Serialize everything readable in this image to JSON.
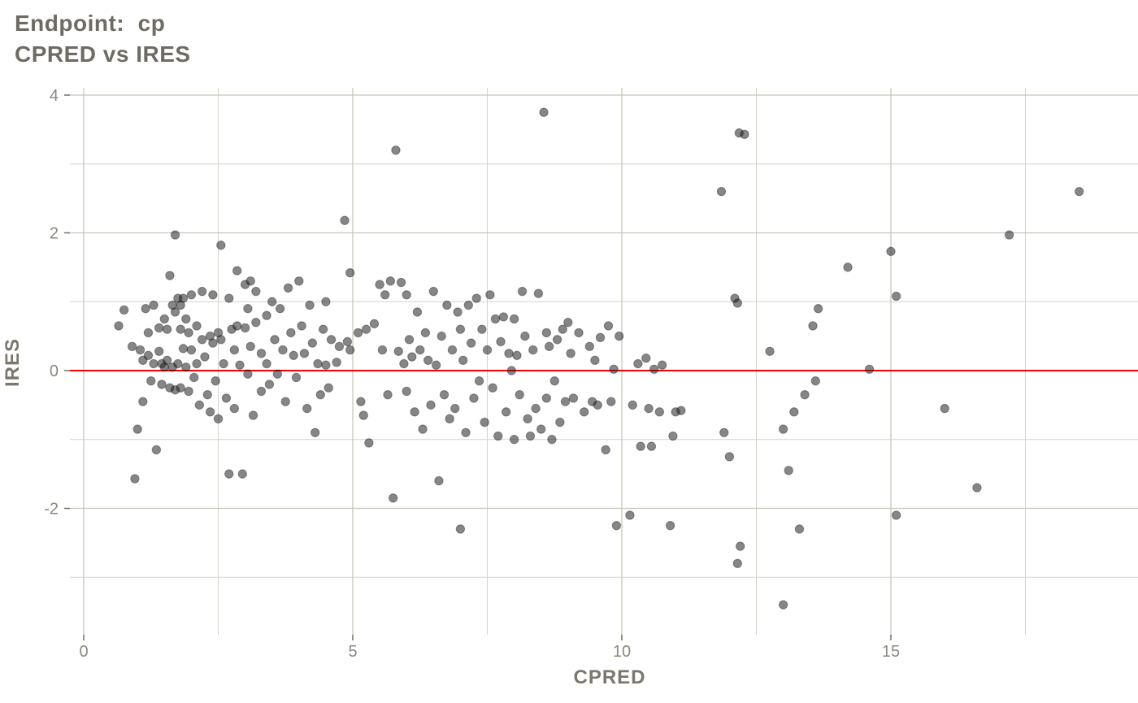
{
  "title": {
    "line1": "Endpoint:  cp",
    "line2": "CPRED vs IRES"
  },
  "colors": {
    "title_text": "#6d6b62",
    "axis_text": "#8a887e",
    "grid_major": "#c9c5bb",
    "grid_minor": "#d5d2c9",
    "tick_mark": "#6f6d66",
    "reference_line": "#ff0000",
    "point_fill": "#232323"
  },
  "chart_data": {
    "type": "scatter",
    "title": "Endpoint: cp",
    "subtitle": "CPRED vs IRES",
    "xlabel": "CPRED",
    "ylabel": "IRES",
    "xlim": [
      -0.26,
      19.6
    ],
    "ylim": [
      -3.85,
      4.1
    ],
    "x_major_ticks": [
      0,
      5,
      10,
      15
    ],
    "x_minor_ticks": [
      2.5,
      7.5,
      12.5,
      17.5
    ],
    "y_major_ticks": [
      -2,
      0,
      2,
      4
    ],
    "y_minor_ticks": [
      -3,
      -1,
      1,
      3
    ],
    "grid": true,
    "legend": "none",
    "reference_line": {
      "y": 0
    },
    "point_style": {
      "radius": 5.2,
      "opacity": 0.55
    },
    "points": [
      [
        0.65,
        0.65
      ],
      [
        0.75,
        0.88
      ],
      [
        0.9,
        0.35
      ],
      [
        0.95,
        -1.57
      ],
      [
        1.0,
        -0.85
      ],
      [
        1.05,
        0.3
      ],
      [
        1.1,
        0.15
      ],
      [
        1.1,
        -0.45
      ],
      [
        1.15,
        0.9
      ],
      [
        1.2,
        0.55
      ],
      [
        1.2,
        0.22
      ],
      [
        1.25,
        -0.15
      ],
      [
        1.3,
        0.95
      ],
      [
        1.3,
        0.1
      ],
      [
        1.35,
        -1.15
      ],
      [
        1.4,
        0.62
      ],
      [
        1.4,
        0.28
      ],
      [
        1.45,
        0.1
      ],
      [
        1.45,
        -0.2
      ],
      [
        1.5,
        0.75
      ],
      [
        1.5,
        0.05
      ],
      [
        1.55,
        0.6
      ],
      [
        1.55,
        0.15
      ],
      [
        1.6,
        1.38
      ],
      [
        1.6,
        -0.25
      ],
      [
        1.65,
        0.95
      ],
      [
        1.65,
        0.05
      ],
      [
        1.7,
        1.97
      ],
      [
        1.7,
        0.85
      ],
      [
        1.7,
        -0.28
      ],
      [
        1.75,
        1.05
      ],
      [
        1.75,
        0.1
      ],
      [
        1.8,
        0.95
      ],
      [
        1.8,
        0.6
      ],
      [
        1.8,
        -0.25
      ],
      [
        1.85,
        1.05
      ],
      [
        1.85,
        0.32
      ],
      [
        1.9,
        0.75
      ],
      [
        1.9,
        0.05
      ],
      [
        1.95,
        0.55
      ],
      [
        1.95,
        -0.3
      ],
      [
        2.0,
        1.1
      ],
      [
        2.0,
        0.3
      ],
      [
        2.05,
        -0.1
      ],
      [
        2.1,
        0.65
      ],
      [
        2.1,
        0.1
      ],
      [
        2.15,
        -0.5
      ],
      [
        2.2,
        1.15
      ],
      [
        2.2,
        0.45
      ],
      [
        2.25,
        0.2
      ],
      [
        2.3,
        -0.35
      ],
      [
        2.35,
        0.5
      ],
      [
        2.35,
        -0.6
      ],
      [
        2.4,
        1.1
      ],
      [
        2.4,
        0.4
      ],
      [
        2.45,
        -0.15
      ],
      [
        2.5,
        0.55
      ],
      [
        2.5,
        -0.7
      ],
      [
        2.55,
        1.82
      ],
      [
        2.55,
        0.45
      ],
      [
        2.6,
        0.1
      ],
      [
        2.65,
        -0.4
      ],
      [
        2.7,
        1.05
      ],
      [
        2.7,
        -1.5
      ],
      [
        2.75,
        0.6
      ],
      [
        2.8,
        0.3
      ],
      [
        2.8,
        -0.55
      ],
      [
        2.85,
        1.45
      ],
      [
        2.85,
        0.65
      ],
      [
        2.9,
        0.08
      ],
      [
        2.95,
        -1.5
      ],
      [
        3.0,
        1.25
      ],
      [
        3.0,
        0.62
      ],
      [
        3.05,
        0.9
      ],
      [
        3.05,
        -0.05
      ],
      [
        3.1,
        1.3
      ],
      [
        3.1,
        0.35
      ],
      [
        3.15,
        -0.65
      ],
      [
        3.2,
        1.15
      ],
      [
        3.2,
        0.7
      ],
      [
        3.3,
        0.25
      ],
      [
        3.3,
        -0.3
      ],
      [
        3.4,
        0.8
      ],
      [
        3.4,
        0.1
      ],
      [
        3.45,
        -0.2
      ],
      [
        3.5,
        1.0
      ],
      [
        3.55,
        0.45
      ],
      [
        3.6,
        -0.05
      ],
      [
        3.65,
        0.9
      ],
      [
        3.7,
        0.3
      ],
      [
        3.75,
        -0.45
      ],
      [
        3.8,
        1.2
      ],
      [
        3.85,
        0.55
      ],
      [
        3.9,
        0.22
      ],
      [
        3.95,
        -0.1
      ],
      [
        4.0,
        1.3
      ],
      [
        4.05,
        0.65
      ],
      [
        4.1,
        0.25
      ],
      [
        4.15,
        -0.55
      ],
      [
        4.2,
        0.95
      ],
      [
        4.25,
        0.4
      ],
      [
        4.3,
        -0.9
      ],
      [
        4.35,
        0.1
      ],
      [
        4.4,
        -0.35
      ],
      [
        4.45,
        0.6
      ],
      [
        4.5,
        1.0
      ],
      [
        4.5,
        0.08
      ],
      [
        4.55,
        -0.25
      ],
      [
        4.6,
        0.45
      ],
      [
        4.7,
        0.12
      ],
      [
        4.75,
        0.35
      ],
      [
        4.85,
        2.18
      ],
      [
        4.9,
        0.42
      ],
      [
        4.95,
        1.42
      ],
      [
        4.95,
        0.3
      ],
      [
        5.1,
        0.55
      ],
      [
        5.15,
        -0.45
      ],
      [
        5.2,
        -0.65
      ],
      [
        5.25,
        0.6
      ],
      [
        5.3,
        -1.05
      ],
      [
        5.4,
        0.68
      ],
      [
        5.5,
        1.25
      ],
      [
        5.55,
        0.3
      ],
      [
        5.6,
        1.1
      ],
      [
        5.65,
        -0.35
      ],
      [
        5.7,
        1.3
      ],
      [
        5.75,
        -1.85
      ],
      [
        5.8,
        3.2
      ],
      [
        5.85,
        0.28
      ],
      [
        5.9,
        1.28
      ],
      [
        5.95,
        0.1
      ],
      [
        6.0,
        1.1
      ],
      [
        6.0,
        -0.3
      ],
      [
        6.05,
        0.45
      ],
      [
        6.1,
        0.2
      ],
      [
        6.15,
        -0.6
      ],
      [
        6.2,
        0.85
      ],
      [
        6.25,
        0.3
      ],
      [
        6.3,
        -0.85
      ],
      [
        6.35,
        0.55
      ],
      [
        6.4,
        0.15
      ],
      [
        6.45,
        -0.5
      ],
      [
        6.5,
        1.15
      ],
      [
        6.55,
        0.08
      ],
      [
        6.6,
        -1.6
      ],
      [
        6.65,
        0.5
      ],
      [
        6.7,
        -0.35
      ],
      [
        6.75,
        0.95
      ],
      [
        6.8,
        -0.7
      ],
      [
        6.85,
        0.3
      ],
      [
        6.9,
        -0.55
      ],
      [
        6.95,
        0.85
      ],
      [
        7.0,
        -2.3
      ],
      [
        7.0,
        0.6
      ],
      [
        7.05,
        0.15
      ],
      [
        7.1,
        -0.9
      ],
      [
        7.15,
        0.95
      ],
      [
        7.2,
        0.4
      ],
      [
        7.25,
        -0.4
      ],
      [
        7.3,
        1.05
      ],
      [
        7.35,
        -0.15
      ],
      [
        7.4,
        0.6
      ],
      [
        7.45,
        -0.75
      ],
      [
        7.5,
        0.3
      ],
      [
        7.55,
        1.1
      ],
      [
        7.6,
        -0.25
      ],
      [
        7.65,
        0.75
      ],
      [
        7.7,
        -0.95
      ],
      [
        7.75,
        0.42
      ],
      [
        7.8,
        0.78
      ],
      [
        7.85,
        -0.6
      ],
      [
        7.9,
        0.25
      ],
      [
        7.95,
        0.0
      ],
      [
        8.0,
        -1.0
      ],
      [
        8.0,
        0.75
      ],
      [
        8.05,
        0.22
      ],
      [
        8.1,
        -0.35
      ],
      [
        8.15,
        1.15
      ],
      [
        8.2,
        0.5
      ],
      [
        8.25,
        -0.7
      ],
      [
        8.3,
        -0.95
      ],
      [
        8.35,
        0.3
      ],
      [
        8.4,
        -0.55
      ],
      [
        8.45,
        1.12
      ],
      [
        8.5,
        -0.85
      ],
      [
        8.55,
        3.75
      ],
      [
        8.6,
        0.55
      ],
      [
        8.6,
        -0.4
      ],
      [
        8.65,
        0.35
      ],
      [
        8.7,
        -1.0
      ],
      [
        8.75,
        -0.15
      ],
      [
        8.8,
        0.45
      ],
      [
        8.85,
        -0.75
      ],
      [
        8.9,
        0.6
      ],
      [
        8.95,
        -0.45
      ],
      [
        9.0,
        0.7
      ],
      [
        9.05,
        0.25
      ],
      [
        9.1,
        -0.4
      ],
      [
        9.2,
        0.55
      ],
      [
        9.3,
        -0.6
      ],
      [
        9.4,
        0.35
      ],
      [
        9.45,
        -0.45
      ],
      [
        9.5,
        0.15
      ],
      [
        9.55,
        -0.5
      ],
      [
        9.6,
        0.48
      ],
      [
        9.7,
        -1.15
      ],
      [
        9.75,
        0.65
      ],
      [
        9.8,
        -0.45
      ],
      [
        9.85,
        0.02
      ],
      [
        9.9,
        -2.25
      ],
      [
        9.95,
        0.5
      ],
      [
        10.15,
        -2.1
      ],
      [
        10.2,
        -0.5
      ],
      [
        10.3,
        0.1
      ],
      [
        10.35,
        -1.1
      ],
      [
        10.45,
        0.18
      ],
      [
        10.5,
        -0.55
      ],
      [
        10.55,
        -1.1
      ],
      [
        10.6,
        0.02
      ],
      [
        10.7,
        -0.6
      ],
      [
        10.75,
        0.08
      ],
      [
        10.9,
        -2.25
      ],
      [
        10.95,
        -0.95
      ],
      [
        11.0,
        -0.6
      ],
      [
        11.1,
        -0.58
      ],
      [
        11.85,
        2.6
      ],
      [
        11.9,
        -0.9
      ],
      [
        12.0,
        -1.25
      ],
      [
        12.1,
        1.05
      ],
      [
        12.15,
        0.98
      ],
      [
        12.18,
        3.45
      ],
      [
        12.28,
        3.43
      ],
      [
        12.15,
        -2.8
      ],
      [
        12.2,
        -2.55
      ],
      [
        12.75,
        0.28
      ],
      [
        13.0,
        -3.4
      ],
      [
        13.0,
        -0.85
      ],
      [
        13.1,
        -1.45
      ],
      [
        13.2,
        -0.6
      ],
      [
        13.3,
        -2.3
      ],
      [
        13.4,
        -0.35
      ],
      [
        13.55,
        0.65
      ],
      [
        13.6,
        -0.15
      ],
      [
        13.65,
        0.9
      ],
      [
        14.2,
        1.5
      ],
      [
        14.6,
        0.02
      ],
      [
        15.0,
        1.73
      ],
      [
        15.1,
        1.08
      ],
      [
        15.1,
        -2.1
      ],
      [
        16.0,
        -0.55
      ],
      [
        16.6,
        -1.7
      ],
      [
        17.2,
        1.97
      ],
      [
        18.5,
        2.6
      ]
    ]
  }
}
